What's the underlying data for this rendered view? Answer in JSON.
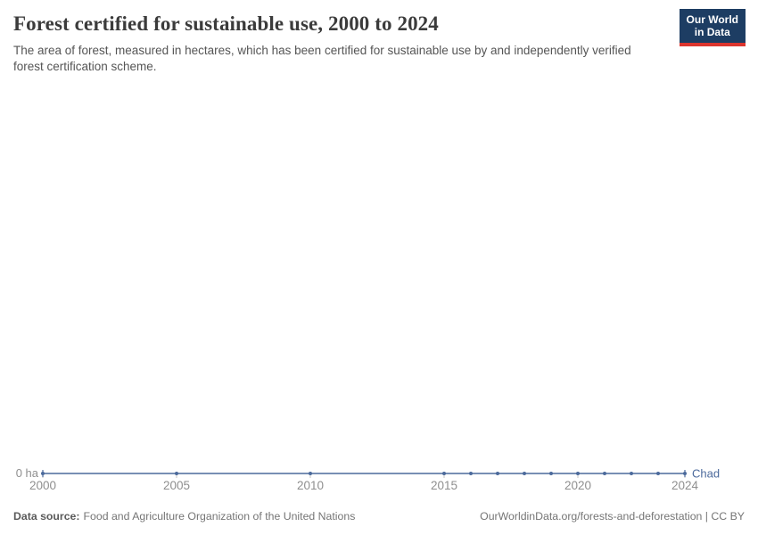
{
  "header": {
    "title": "Forest certified for sustainable use, 2000 to 2024",
    "subtitle": "The area of forest, measured in hectares, which has been certified for sustainable use by and independently verified forest certification scheme."
  },
  "logo": {
    "line1": "Our World",
    "line2": "in Data",
    "bg_color": "#1d3d63",
    "accent_color": "#dc352e"
  },
  "chart_data": {
    "type": "line",
    "title": "Forest certified for sustainable use, 2000 to 2024",
    "entity": "Chad",
    "unit": "hectares",
    "x": [
      2000,
      2005,
      2010,
      2015,
      2016,
      2017,
      2018,
      2019,
      2020,
      2021,
      2022,
      2023,
      2024
    ],
    "series": [
      {
        "name": "Chad",
        "values": [
          0,
          0,
          0,
          0,
          0,
          0,
          0,
          0,
          0,
          0,
          0,
          0,
          0
        ]
      }
    ],
    "xlim": [
      2000,
      2024
    ],
    "ylim": [
      0,
      0
    ],
    "xticks": [
      2000,
      2005,
      2010,
      2015,
      2020,
      2024
    ],
    "y_zero_label": "0 ha",
    "grid": false,
    "legend_position": "end-of-line",
    "line_color": "#4c6a9c",
    "tick_label_color": "#8f8f8f",
    "axis_tick_color": "#c4c4c4"
  },
  "footer": {
    "source_label": "Data source:",
    "source": "Food and Agriculture Organization of the United Nations",
    "link": "OurWorldinData.org/forests-and-deforestation | CC BY"
  }
}
